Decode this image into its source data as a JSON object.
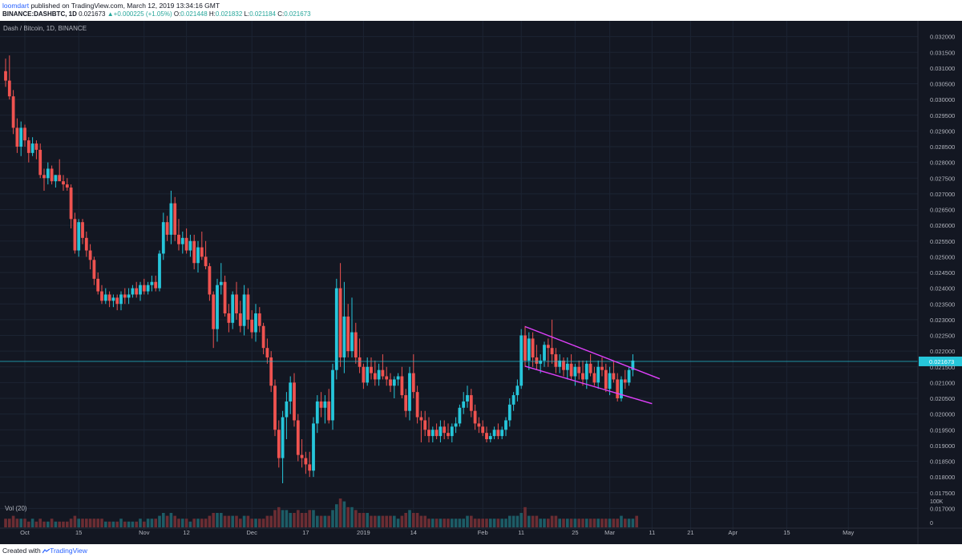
{
  "header": {
    "author": "loomdart",
    "published_text": " published on TradingView.com, March 12, 2019 13:34:16 GMT",
    "symbol": "BINANCE:DASHBTC, 1D",
    "last": "0.021673",
    "change": "+0.000225 (+1.05%)",
    "o_label": "O:",
    "o": "0.021448",
    "h_label": "H:",
    "h": "0.021832",
    "l_label": "L:",
    "l": "0.021184",
    "c_label": "C:",
    "c": "0.021673"
  },
  "footer": {
    "created_text": "Created with",
    "brand": "TradingView"
  },
  "colors": {
    "background": "#131722",
    "grid": "#1c2433",
    "up": "#26c6da",
    "down": "#ef5350",
    "channel": "#e040fb",
    "price_line": "#26c6da",
    "axis_text": "#b2b5be"
  },
  "chart_data": {
    "type": "candlestick",
    "title": "Dash / Bitcoin, 1D, BINANCE",
    "volume_label": "Vol (20)",
    "last_price_label": "0.021673",
    "last_price": 0.021673,
    "ylim": [
      0.0165,
      0.0325
    ],
    "y_ticks": [
      "0.032000",
      "0.031500",
      "0.031000",
      "0.030500",
      "0.030000",
      "0.029500",
      "0.029000",
      "0.028500",
      "0.028000",
      "0.027500",
      "0.027000",
      "0.026500",
      "0.026000",
      "0.025500",
      "0.025000",
      "0.024500",
      "0.024000",
      "0.023500",
      "0.023000",
      "0.022500",
      "0.022000",
      "0.021500",
      "0.021000",
      "0.020500",
      "0.020000",
      "0.019500",
      "0.019000",
      "0.018500",
      "0.018000",
      "0.017500",
      "0.017000"
    ],
    "volume_axis_labels": [
      "100K",
      "0"
    ],
    "x_ticks": [
      {
        "label": "Oct",
        "index": 5
      },
      {
        "label": "15",
        "index": 19
      },
      {
        "label": "Nov",
        "index": 36
      },
      {
        "label": "12",
        "index": 47
      },
      {
        "label": "Dec",
        "index": 64
      },
      {
        "label": "17",
        "index": 78
      },
      {
        "label": "2019",
        "index": 93
      },
      {
        "label": "14",
        "index": 106
      },
      {
        "label": "Feb",
        "index": 124
      },
      {
        "label": "11",
        "index": 134
      },
      {
        "label": "25",
        "index": 148
      },
      {
        "label": "Mar",
        "index": 157
      },
      {
        "label": "11",
        "index": 168
      },
      {
        "label": "21",
        "index": 178
      },
      {
        "label": "Apr",
        "index": 189
      },
      {
        "label": "15",
        "index": 203
      },
      {
        "label": "May",
        "index": 219
      }
    ],
    "candles": [
      [
        0.0309,
        0.0313,
        0.0304,
        0.0306
      ],
      [
        0.0306,
        0.0314,
        0.03,
        0.0301
      ],
      [
        0.0301,
        0.0303,
        0.0289,
        0.0291
      ],
      [
        0.0291,
        0.0294,
        0.0283,
        0.0285
      ],
      [
        0.0285,
        0.0293,
        0.0282,
        0.0291
      ],
      [
        0.0291,
        0.0292,
        0.0285,
        0.0287
      ],
      [
        0.0287,
        0.0288,
        0.028,
        0.0283
      ],
      [
        0.0283,
        0.0288,
        0.0282,
        0.0286
      ],
      [
        0.0286,
        0.0287,
        0.0281,
        0.0284
      ],
      [
        0.0284,
        0.0286,
        0.0275,
        0.0276
      ],
      [
        0.0276,
        0.0278,
        0.0271,
        0.0275
      ],
      [
        0.0275,
        0.028,
        0.0273,
        0.0278
      ],
      [
        0.0278,
        0.0279,
        0.0273,
        0.0274
      ],
      [
        0.0274,
        0.0276,
        0.0272,
        0.0276
      ],
      [
        0.0276,
        0.0281,
        0.0275,
        0.0274
      ],
      [
        0.0274,
        0.0276,
        0.0271,
        0.0273
      ],
      [
        0.0273,
        0.0275,
        0.0271,
        0.0272
      ],
      [
        0.0272,
        0.0273,
        0.0259,
        0.0262
      ],
      [
        0.0262,
        0.0264,
        0.0251,
        0.0252
      ],
      [
        0.0252,
        0.0262,
        0.025,
        0.0261
      ],
      [
        0.0261,
        0.0262,
        0.0254,
        0.0256
      ],
      [
        0.0256,
        0.0258,
        0.025,
        0.0252
      ],
      [
        0.0252,
        0.0254,
        0.0246,
        0.0249
      ],
      [
        0.0249,
        0.025,
        0.0241,
        0.0243
      ],
      [
        0.0243,
        0.0245,
        0.0238,
        0.0239
      ],
      [
        0.0239,
        0.0241,
        0.0235,
        0.0236
      ],
      [
        0.0236,
        0.024,
        0.0235,
        0.0238
      ],
      [
        0.0238,
        0.0239,
        0.0234,
        0.0236
      ],
      [
        0.0236,
        0.0238,
        0.0234,
        0.0237
      ],
      [
        0.0237,
        0.0238,
        0.0233,
        0.0235
      ],
      [
        0.0235,
        0.0239,
        0.0233,
        0.0238
      ],
      [
        0.0238,
        0.024,
        0.0235,
        0.0237
      ],
      [
        0.0237,
        0.024,
        0.0235,
        0.0238
      ],
      [
        0.0238,
        0.0241,
        0.0237,
        0.024
      ],
      [
        0.024,
        0.0242,
        0.0237,
        0.0238
      ],
      [
        0.0238,
        0.0242,
        0.0236,
        0.0241
      ],
      [
        0.0241,
        0.0243,
        0.0238,
        0.0239
      ],
      [
        0.0239,
        0.0242,
        0.0238,
        0.0241
      ],
      [
        0.0241,
        0.0244,
        0.0239,
        0.0242
      ],
      [
        0.0242,
        0.0244,
        0.0239,
        0.024
      ],
      [
        0.024,
        0.0252,
        0.0239,
        0.0251
      ],
      [
        0.0251,
        0.0264,
        0.0249,
        0.0261
      ],
      [
        0.0261,
        0.0263,
        0.0255,
        0.0257
      ],
      [
        0.0257,
        0.0271,
        0.0254,
        0.0267
      ],
      [
        0.0267,
        0.0269,
        0.0255,
        0.0257
      ],
      [
        0.0257,
        0.0262,
        0.0252,
        0.0254
      ],
      [
        0.0254,
        0.0258,
        0.0251,
        0.0256
      ],
      [
        0.0256,
        0.0259,
        0.0251,
        0.0252
      ],
      [
        0.0252,
        0.0257,
        0.025,
        0.0255
      ],
      [
        0.0255,
        0.0257,
        0.0246,
        0.0248
      ],
      [
        0.0248,
        0.0255,
        0.0245,
        0.0253
      ],
      [
        0.0253,
        0.0258,
        0.0249,
        0.025
      ],
      [
        0.025,
        0.0255,
        0.0246,
        0.0247
      ],
      [
        0.0247,
        0.0248,
        0.0236,
        0.0238
      ],
      [
        0.0238,
        0.0239,
        0.0221,
        0.0227
      ],
      [
        0.0227,
        0.0243,
        0.0223,
        0.0241
      ],
      [
        0.0241,
        0.0248,
        0.0238,
        0.0242
      ],
      [
        0.0242,
        0.0244,
        0.0231,
        0.0232
      ],
      [
        0.0232,
        0.0235,
        0.0226,
        0.0229
      ],
      [
        0.0229,
        0.0239,
        0.0227,
        0.0238
      ],
      [
        0.0238,
        0.0242,
        0.023,
        0.0232
      ],
      [
        0.0232,
        0.0236,
        0.0226,
        0.0228
      ],
      [
        0.0228,
        0.0241,
        0.0225,
        0.0238
      ],
      [
        0.0238,
        0.024,
        0.0227,
        0.023
      ],
      [
        0.023,
        0.0233,
        0.0224,
        0.0226
      ],
      [
        0.0226,
        0.0235,
        0.0223,
        0.0232
      ],
      [
        0.0232,
        0.0234,
        0.0226,
        0.0228
      ],
      [
        0.0228,
        0.0229,
        0.0219,
        0.0221
      ],
      [
        0.0221,
        0.0224,
        0.0216,
        0.0218
      ],
      [
        0.0218,
        0.022,
        0.0207,
        0.0209
      ],
      [
        0.0209,
        0.0211,
        0.0193,
        0.0195
      ],
      [
        0.0195,
        0.0198,
        0.0183,
        0.0186
      ],
      [
        0.0186,
        0.0201,
        0.0178,
        0.0199
      ],
      [
        0.0199,
        0.0207,
        0.0192,
        0.0204
      ],
      [
        0.0204,
        0.0212,
        0.02,
        0.021
      ],
      [
        0.021,
        0.0213,
        0.0196,
        0.0198
      ],
      [
        0.0198,
        0.02,
        0.0185,
        0.0187
      ],
      [
        0.0187,
        0.0192,
        0.0183,
        0.0186
      ],
      [
        0.0186,
        0.0188,
        0.0181,
        0.0184
      ],
      [
        0.0184,
        0.0188,
        0.018,
        0.0182
      ],
      [
        0.0182,
        0.0199,
        0.018,
        0.0197
      ],
      [
        0.0197,
        0.0206,
        0.0194,
        0.0204
      ],
      [
        0.0204,
        0.0207,
        0.0199,
        0.0202
      ],
      [
        0.0202,
        0.0206,
        0.0197,
        0.0204
      ],
      [
        0.0204,
        0.0208,
        0.0197,
        0.0198
      ],
      [
        0.0198,
        0.0216,
        0.0195,
        0.0214
      ],
      [
        0.0214,
        0.0243,
        0.0211,
        0.024
      ],
      [
        0.024,
        0.0248,
        0.0215,
        0.0218
      ],
      [
        0.0218,
        0.0242,
        0.0213,
        0.0231
      ],
      [
        0.0231,
        0.0235,
        0.0218,
        0.022
      ],
      [
        0.022,
        0.0237,
        0.0218,
        0.0226
      ],
      [
        0.0226,
        0.0229,
        0.0216,
        0.0218
      ],
      [
        0.0218,
        0.0224,
        0.0213,
        0.0215
      ],
      [
        0.0215,
        0.0216,
        0.0208,
        0.021
      ],
      [
        0.021,
        0.0218,
        0.0209,
        0.0215
      ],
      [
        0.0215,
        0.0218,
        0.0211,
        0.0213
      ],
      [
        0.0213,
        0.0217,
        0.0209,
        0.0211
      ],
      [
        0.0211,
        0.0216,
        0.0209,
        0.0214
      ],
      [
        0.0214,
        0.0219,
        0.0211,
        0.0212
      ],
      [
        0.0212,
        0.0215,
        0.0209,
        0.0211
      ],
      [
        0.0211,
        0.0213,
        0.0207,
        0.0209
      ],
      [
        0.0209,
        0.0212,
        0.0205,
        0.0211
      ],
      [
        0.0211,
        0.0213,
        0.0209,
        0.0212
      ],
      [
        0.0212,
        0.0215,
        0.0205,
        0.0206
      ],
      [
        0.0206,
        0.0208,
        0.0199,
        0.0201
      ],
      [
        0.0201,
        0.0215,
        0.0198,
        0.0213
      ],
      [
        0.0213,
        0.0219,
        0.0205,
        0.0207
      ],
      [
        0.0207,
        0.0209,
        0.0197,
        0.0199
      ],
      [
        0.0199,
        0.0201,
        0.0191,
        0.0198
      ],
      [
        0.0198,
        0.0201,
        0.0193,
        0.0195
      ],
      [
        0.0195,
        0.0199,
        0.0191,
        0.0193
      ],
      [
        0.0193,
        0.0196,
        0.0191,
        0.0195
      ],
      [
        0.0195,
        0.0197,
        0.0192,
        0.0193
      ],
      [
        0.0193,
        0.0198,
        0.0191,
        0.0196
      ],
      [
        0.0196,
        0.0198,
        0.0192,
        0.0194
      ],
      [
        0.0194,
        0.0197,
        0.0192,
        0.0193
      ],
      [
        0.0193,
        0.0197,
        0.0191,
        0.0196
      ],
      [
        0.0196,
        0.0199,
        0.0194,
        0.0197
      ],
      [
        0.0197,
        0.0203,
        0.0196,
        0.0202
      ],
      [
        0.0202,
        0.0207,
        0.02,
        0.0204
      ],
      [
        0.0204,
        0.0209,
        0.0202,
        0.0206
      ],
      [
        0.0206,
        0.0208,
        0.0199,
        0.0201
      ],
      [
        0.0201,
        0.0203,
        0.0195,
        0.0197
      ],
      [
        0.0197,
        0.0199,
        0.0194,
        0.0196
      ],
      [
        0.0196,
        0.0198,
        0.0193,
        0.0194
      ],
      [
        0.0194,
        0.0196,
        0.0191,
        0.0192
      ],
      [
        0.0192,
        0.0194,
        0.0191,
        0.0193
      ],
      [
        0.0193,
        0.0196,
        0.0192,
        0.0195
      ],
      [
        0.0195,
        0.0197,
        0.0192,
        0.0193
      ],
      [
        0.0193,
        0.0196,
        0.0192,
        0.0195
      ],
      [
        0.0195,
        0.0199,
        0.0193,
        0.0198
      ],
      [
        0.0198,
        0.0205,
        0.0196,
        0.0203
      ],
      [
        0.0203,
        0.0207,
        0.0201,
        0.0206
      ],
      [
        0.0206,
        0.0211,
        0.0204,
        0.0209
      ],
      [
        0.0209,
        0.0227,
        0.0208,
        0.0225
      ],
      [
        0.0225,
        0.0228,
        0.0215,
        0.0217
      ],
      [
        0.0217,
        0.0226,
        0.0214,
        0.0224
      ],
      [
        0.0224,
        0.0226,
        0.0215,
        0.0218
      ],
      [
        0.0218,
        0.0222,
        0.0214,
        0.0216
      ],
      [
        0.0216,
        0.0219,
        0.0213,
        0.0217
      ],
      [
        0.0217,
        0.0223,
        0.0215,
        0.0222
      ],
      [
        0.0222,
        0.0224,
        0.0215,
        0.0221
      ],
      [
        0.0221,
        0.023,
        0.0216,
        0.0219
      ],
      [
        0.0219,
        0.0221,
        0.0213,
        0.0215
      ],
      [
        0.0215,
        0.0219,
        0.0213,
        0.0217
      ],
      [
        0.0217,
        0.0218,
        0.0212,
        0.0214
      ],
      [
        0.0214,
        0.0218,
        0.0211,
        0.0216
      ],
      [
        0.0216,
        0.0219,
        0.0211,
        0.0212
      ],
      [
        0.0212,
        0.0216,
        0.0209,
        0.0215
      ],
      [
        0.0215,
        0.0217,
        0.0211,
        0.0213
      ],
      [
        0.0213,
        0.0217,
        0.0209,
        0.0211
      ],
      [
        0.0211,
        0.0217,
        0.0208,
        0.0216
      ],
      [
        0.0216,
        0.0219,
        0.0212,
        0.0213
      ],
      [
        0.0213,
        0.0215,
        0.0209,
        0.021
      ],
      [
        0.021,
        0.0217,
        0.0208,
        0.0215
      ],
      [
        0.0215,
        0.0218,
        0.0212,
        0.0214
      ],
      [
        0.0214,
        0.0216,
        0.0207,
        0.0208
      ],
      [
        0.0208,
        0.0215,
        0.0206,
        0.0213
      ],
      [
        0.0213,
        0.0217,
        0.021,
        0.0211
      ],
      [
        0.0211,
        0.0213,
        0.0204,
        0.0205
      ],
      [
        0.0205,
        0.0212,
        0.0204,
        0.0211
      ],
      [
        0.0211,
        0.0214,
        0.0208,
        0.021
      ],
      [
        0.021,
        0.0215,
        0.0209,
        0.0214
      ],
      [
        0.0214,
        0.0219,
        0.0212,
        0.0217
      ]
    ],
    "volume": [
      3,
      3,
      4,
      3,
      3,
      3,
      2,
      3,
      2,
      3,
      2,
      2,
      3,
      2,
      2,
      2,
      2,
      3,
      4,
      3,
      3,
      3,
      3,
      3,
      3,
      3,
      2,
      2,
      2,
      2,
      3,
      2,
      2,
      2,
      2,
      3,
      2,
      3,
      3,
      3,
      4,
      5,
      4,
      5,
      4,
      3,
      3,
      3,
      2,
      3,
      3,
      3,
      3,
      4,
      5,
      5,
      5,
      4,
      4,
      4,
      4,
      3,
      4,
      4,
      3,
      3,
      3,
      3,
      4,
      4,
      6,
      7,
      6,
      6,
      5,
      5,
      6,
      5,
      5,
      6,
      6,
      4,
      4,
      4,
      4,
      6,
      8,
      10,
      9,
      7,
      7,
      6,
      5,
      5,
      5,
      4,
      4,
      4,
      4,
      4,
      4,
      4,
      3,
      4,
      5,
      6,
      5,
      5,
      4,
      4,
      3,
      3,
      3,
      3,
      3,
      3,
      3,
      3,
      3,
      3,
      4,
      4,
      3,
      3,
      3,
      3,
      3,
      3,
      3,
      3,
      3,
      4,
      4,
      4,
      5,
      7,
      4,
      4,
      4,
      3,
      3,
      3,
      4,
      4,
      3,
      3,
      3,
      3,
      3,
      3,
      3,
      3,
      3,
      3,
      3,
      3,
      3,
      3,
      3,
      3,
      4,
      3,
      3,
      3,
      4
    ],
    "volume_max": 10,
    "channel_lines": [
      {
        "name": "upper",
        "from": [
          135,
          0.02278
        ],
        "to": [
          170,
          0.02112
        ]
      },
      {
        "name": "lower",
        "from": [
          135,
          0.02152
        ],
        "to": [
          168,
          0.02033
        ]
      }
    ]
  }
}
